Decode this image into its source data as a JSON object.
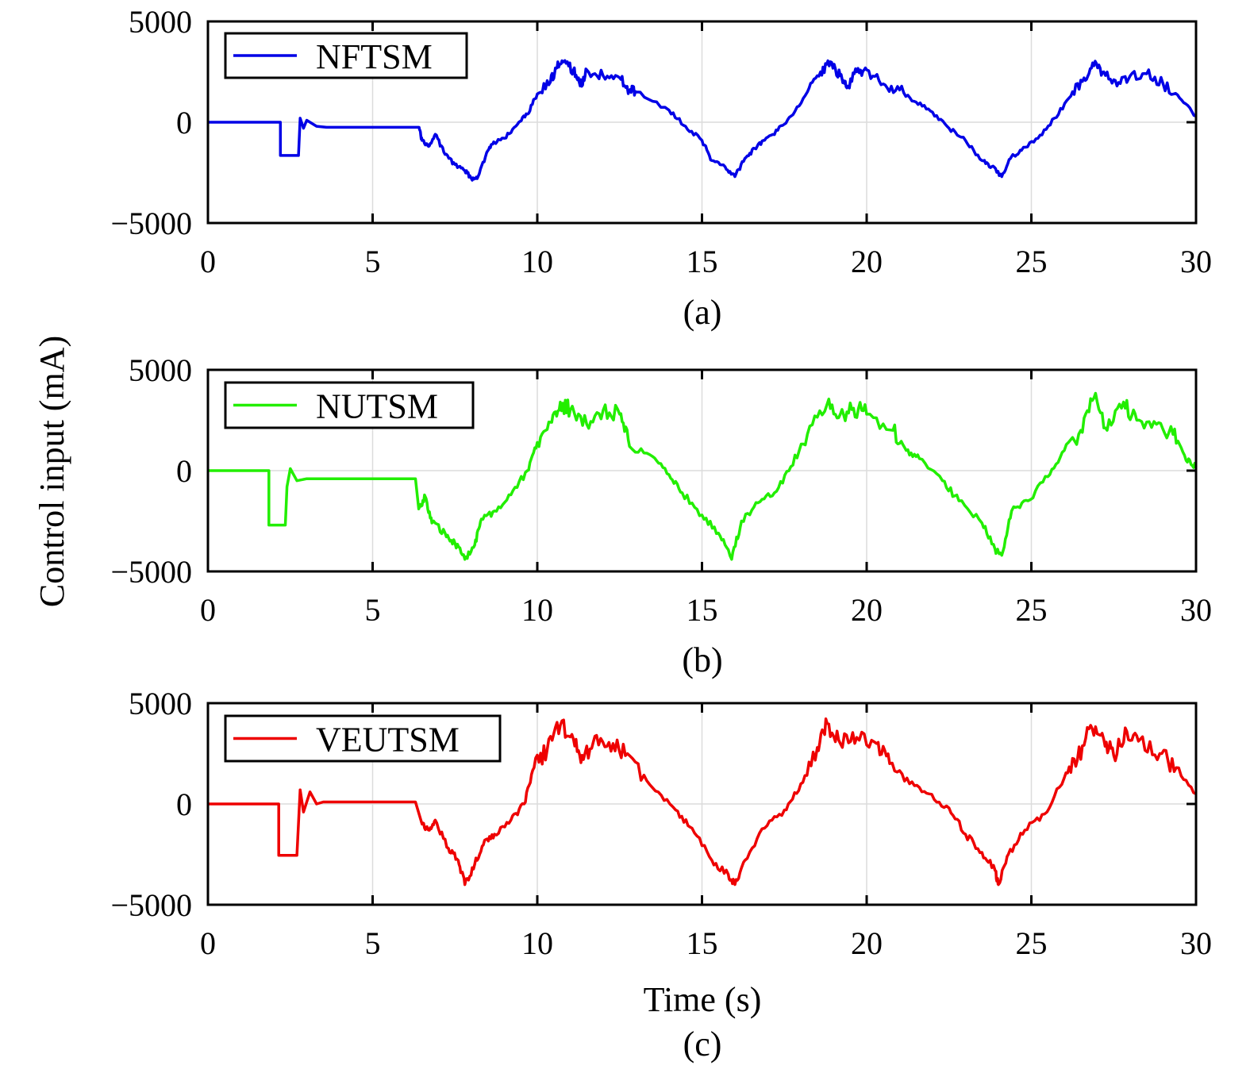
{
  "chart_data": [
    {
      "type": "line",
      "caption": "(a)",
      "xlim": [
        0,
        30
      ],
      "ylim": [
        -5000,
        5000
      ],
      "xticks": [
        0,
        5,
        10,
        15,
        20,
        25,
        30
      ],
      "yticks": [
        -5000,
        0,
        5000
      ],
      "grid": true,
      "legend_placement": "top-left",
      "series": [
        {
          "name": "NFTSM",
          "color": "#0000e6",
          "points": [
            [
              0,
              0
            ],
            [
              2.2,
              0
            ],
            [
              2.2,
              -1650
            ],
            [
              2.75,
              -1650
            ],
            [
              2.8,
              200
            ],
            [
              2.9,
              -300
            ],
            [
              3.0,
              100
            ],
            [
              3.3,
              -200
            ],
            [
              3.6,
              -250
            ],
            [
              6.4,
              -250
            ],
            [
              6.5,
              -900
            ],
            [
              6.7,
              -1200
            ],
            [
              6.9,
              -600
            ],
            [
              7.2,
              -1600
            ],
            [
              7.5,
              -2100
            ],
            [
              7.8,
              -2400
            ],
            [
              8.0,
              -2800
            ],
            [
              8.2,
              -2700
            ],
            [
              8.5,
              -1400
            ],
            [
              8.7,
              -1000
            ],
            [
              9.0,
              -800
            ],
            [
              9.4,
              -100
            ],
            [
              9.7,
              400
            ],
            [
              10.0,
              1400
            ],
            [
              10.4,
              2000
            ],
            [
              10.6,
              2700
            ],
            [
              10.8,
              3000
            ],
            [
              11.1,
              2600
            ],
            [
              11.3,
              1800
            ],
            [
              11.5,
              2600
            ],
            [
              12.0,
              2300
            ],
            [
              12.5,
              2200
            ],
            [
              12.8,
              1600
            ],
            [
              13.0,
              1500
            ],
            [
              14.0,
              600
            ],
            [
              14.5,
              -200
            ],
            [
              15.0,
              -900
            ],
            [
              15.3,
              -1900
            ],
            [
              15.7,
              -2200
            ],
            [
              16.0,
              -2700
            ],
            [
              16.3,
              -1800
            ],
            [
              16.6,
              -1300
            ],
            [
              16.9,
              -900
            ],
            [
              17.3,
              -400
            ],
            [
              17.7,
              300
            ],
            [
              18.2,
              1500
            ],
            [
              18.6,
              2500
            ],
            [
              18.9,
              3000
            ],
            [
              19.2,
              2300
            ],
            [
              19.4,
              1700
            ],
            [
              19.7,
              2500
            ],
            [
              20.0,
              2600
            ],
            [
              20.5,
              1900
            ],
            [
              21.0,
              1600
            ],
            [
              21.5,
              1000
            ],
            [
              22.0,
              500
            ],
            [
              22.5,
              -300
            ],
            [
              23.0,
              -900
            ],
            [
              23.5,
              -1900
            ],
            [
              23.8,
              -2200
            ],
            [
              24.1,
              -2700
            ],
            [
              24.4,
              -1700
            ],
            [
              24.7,
              -1400
            ],
            [
              25.2,
              -800
            ],
            [
              25.7,
              200
            ],
            [
              26.2,
              1300
            ],
            [
              26.6,
              2200
            ],
            [
              26.9,
              2800
            ],
            [
              27.2,
              2500
            ],
            [
              27.6,
              1800
            ],
            [
              28.0,
              2300
            ],
            [
              28.5,
              2400
            ],
            [
              29.0,
              1900
            ],
            [
              29.5,
              1200
            ],
            [
              30,
              300
            ]
          ]
        }
      ]
    },
    {
      "type": "line",
      "caption": "(b)",
      "xlim": [
        0,
        30
      ],
      "ylim": [
        -5000,
        5000
      ],
      "xticks": [
        0,
        5,
        10,
        15,
        20,
        25,
        30
      ],
      "yticks": [
        -5000,
        0,
        5000
      ],
      "grid": true,
      "legend_placement": "top-left",
      "series": [
        {
          "name": "NUTSM",
          "color": "#22ee00",
          "points": [
            [
              0,
              0
            ],
            [
              1.85,
              0
            ],
            [
              1.85,
              -2700
            ],
            [
              2.35,
              -2700
            ],
            [
              2.4,
              -800
            ],
            [
              2.5,
              100
            ],
            [
              2.7,
              -500
            ],
            [
              3.0,
              -400
            ],
            [
              6.3,
              -400
            ],
            [
              6.4,
              -1900
            ],
            [
              6.6,
              -1300
            ],
            [
              6.8,
              -2600
            ],
            [
              7.2,
              -3100
            ],
            [
              7.5,
              -3600
            ],
            [
              7.8,
              -4400
            ],
            [
              8.1,
              -3700
            ],
            [
              8.3,
              -2400
            ],
            [
              8.7,
              -2000
            ],
            [
              9.2,
              -1200
            ],
            [
              9.7,
              0
            ],
            [
              10.0,
              1400
            ],
            [
              10.4,
              2400
            ],
            [
              10.7,
              3400
            ],
            [
              11.0,
              3000
            ],
            [
              11.5,
              2300
            ],
            [
              12.0,
              3000
            ],
            [
              12.5,
              2800
            ],
            [
              12.8,
              1200
            ],
            [
              13.5,
              700
            ],
            [
              14.0,
              -200
            ],
            [
              14.4,
              -1100
            ],
            [
              15.0,
              -2200
            ],
            [
              15.5,
              -3100
            ],
            [
              15.9,
              -4400
            ],
            [
              16.2,
              -2500
            ],
            [
              16.7,
              -1600
            ],
            [
              17.2,
              -1100
            ],
            [
              17.7,
              200
            ],
            [
              18.2,
              1800
            ],
            [
              18.8,
              3300
            ],
            [
              19.2,
              2800
            ],
            [
              19.6,
              3100
            ],
            [
              20.0,
              2800
            ],
            [
              20.8,
              2000
            ],
            [
              21.2,
              1000
            ],
            [
              21.6,
              600
            ],
            [
              22.3,
              -500
            ],
            [
              22.8,
              -1500
            ],
            [
              23.5,
              -2600
            ],
            [
              23.9,
              -3900
            ],
            [
              24.1,
              -4200
            ],
            [
              24.4,
              -2000
            ],
            [
              24.9,
              -1500
            ],
            [
              25.5,
              -300
            ],
            [
              26.0,
              1000
            ],
            [
              26.5,
              2000
            ],
            [
              26.9,
              3600
            ],
            [
              27.3,
              2000
            ],
            [
              27.8,
              3400
            ],
            [
              28.2,
              2500
            ],
            [
              28.8,
              2300
            ],
            [
              29.3,
              1800
            ],
            [
              29.7,
              500
            ],
            [
              30,
              200
            ]
          ]
        }
      ]
    },
    {
      "type": "line",
      "caption": "(c)",
      "xlabel": "Time (s)",
      "xlim": [
        0,
        30
      ],
      "ylim": [
        -5000,
        5000
      ],
      "xticks": [
        0,
        5,
        10,
        15,
        20,
        25,
        30
      ],
      "yticks": [
        -5000,
        0,
        5000
      ],
      "grid": true,
      "legend_placement": "top-left",
      "series": [
        {
          "name": "VEUTSM",
          "color": "#ee0000",
          "points": [
            [
              0,
              0
            ],
            [
              2.15,
              0
            ],
            [
              2.15,
              -2550
            ],
            [
              2.7,
              -2550
            ],
            [
              2.8,
              700
            ],
            [
              2.9,
              -400
            ],
            [
              3.1,
              600
            ],
            [
              3.3,
              0
            ],
            [
              3.5,
              100
            ],
            [
              6.3,
              100
            ],
            [
              6.5,
              -1000
            ],
            [
              6.7,
              -1300
            ],
            [
              6.9,
              -800
            ],
            [
              7.3,
              -2200
            ],
            [
              7.6,
              -2800
            ],
            [
              7.8,
              -4000
            ],
            [
              8.1,
              -3000
            ],
            [
              8.4,
              -1800
            ],
            [
              8.7,
              -1500
            ],
            [
              9.2,
              -800
            ],
            [
              9.6,
              0
            ],
            [
              9.9,
              1800
            ],
            [
              10.3,
              2700
            ],
            [
              10.7,
              3900
            ],
            [
              11.1,
              3200
            ],
            [
              11.4,
              2200
            ],
            [
              11.8,
              3400
            ],
            [
              12.3,
              3000
            ],
            [
              12.8,
              2400
            ],
            [
              13.5,
              800
            ],
            [
              14.2,
              -300
            ],
            [
              14.7,
              -1200
            ],
            [
              15.3,
              -2800
            ],
            [
              15.8,
              -3500
            ],
            [
              16.0,
              -4000
            ],
            [
              16.3,
              -2800
            ],
            [
              16.9,
              -1200
            ],
            [
              17.5,
              -300
            ],
            [
              18.0,
              1000
            ],
            [
              18.5,
              2800
            ],
            [
              18.8,
              4000
            ],
            [
              19.2,
              3000
            ],
            [
              19.7,
              3300
            ],
            [
              20.3,
              3000
            ],
            [
              20.7,
              2000
            ],
            [
              21.3,
              1000
            ],
            [
              21.9,
              500
            ],
            [
              22.5,
              -200
            ],
            [
              23.0,
              -1500
            ],
            [
              23.5,
              -2400
            ],
            [
              23.9,
              -3300
            ],
            [
              24.0,
              -4000
            ],
            [
              24.3,
              -2500
            ],
            [
              24.8,
              -1300
            ],
            [
              25.4,
              -500
            ],
            [
              26.0,
              1300
            ],
            [
              26.4,
              2200
            ],
            [
              26.8,
              3900
            ],
            [
              27.2,
              3200
            ],
            [
              27.5,
              2400
            ],
            [
              27.9,
              3600
            ],
            [
              28.3,
              3200
            ],
            [
              28.9,
              2500
            ],
            [
              29.4,
              1800
            ],
            [
              30,
              500
            ]
          ]
        }
      ]
    }
  ],
  "shared_ylabel": "Control input (mA)"
}
